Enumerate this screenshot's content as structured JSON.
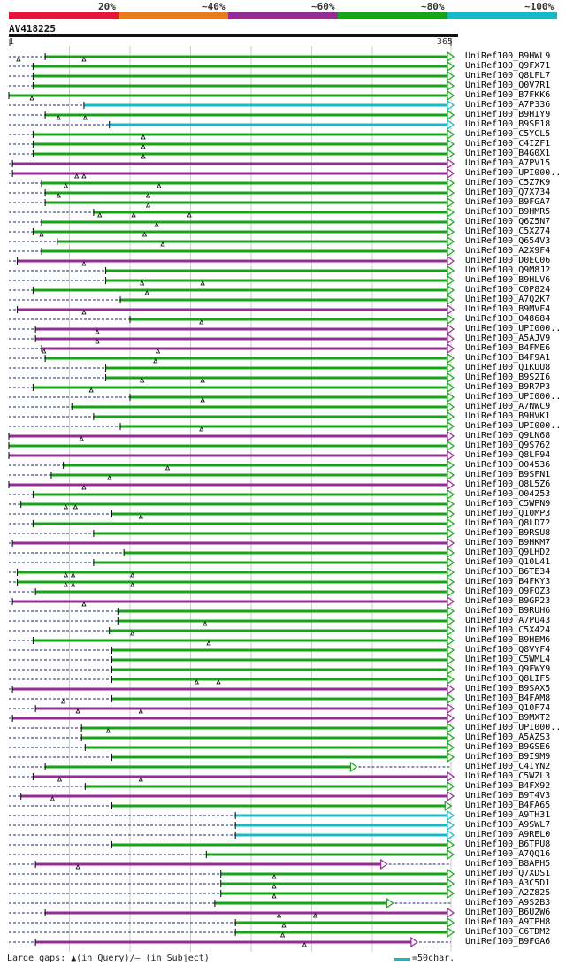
{
  "legend": {
    "items": [
      {
        "label": "20%",
        "color": "#e8153a"
      },
      {
        "label": "~40%",
        "color": "#e87d1e"
      },
      {
        "label": "~60%",
        "color": "#932c93"
      },
      {
        "label": "~80%",
        "color": "#18a418"
      },
      {
        "label": "~100%",
        "color": "#18b8c8"
      }
    ]
  },
  "query": {
    "name": "AV418225",
    "start": "1",
    "end": "365",
    "length": 365
  },
  "hits": [
    {
      "name": "UniRef100_B9HWL9",
      "s": 30,
      "e": 365,
      "c": "green",
      "tri": [
        8,
        62
      ]
    },
    {
      "name": "UniRef100_Q9FX71",
      "s": 20,
      "e": 365,
      "c": "green",
      "tri": []
    },
    {
      "name": "UniRef100_Q8LFL7",
      "s": 20,
      "e": 365,
      "c": "green",
      "tri": []
    },
    {
      "name": "UniRef100_Q0V7R1",
      "s": 20,
      "e": 365,
      "c": "green",
      "tri": []
    },
    {
      "name": "UniRef100_B7FKK6",
      "s": 0,
      "e": 365,
      "c": "green",
      "tri": [
        19
      ]
    },
    {
      "name": "UniRef100_A7P336",
      "s": 62,
      "e": 365,
      "c": "cyan",
      "tri": []
    },
    {
      "name": "UniRef100_B9HIY9",
      "s": 30,
      "e": 365,
      "c": "green",
      "tri": [
        41,
        63
      ]
    },
    {
      "name": "UniRef100_B9SE18",
      "s": 83,
      "e": 365,
      "c": "cyan",
      "tri": []
    },
    {
      "name": "UniRef100_C5YCL5",
      "s": 20,
      "e": 365,
      "c": "green",
      "tri": [
        111
      ]
    },
    {
      "name": "UniRef100_C4IZF1",
      "s": 20,
      "e": 365,
      "c": "green",
      "tri": [
        111
      ]
    },
    {
      "name": "UniRef100_B4G0X1",
      "s": 20,
      "e": 365,
      "c": "green",
      "tri": [
        111
      ]
    },
    {
      "name": "UniRef100_A7PV15",
      "s": 3,
      "e": 365,
      "c": "purple",
      "tri": []
    },
    {
      "name": "UniRef100_UPI000..",
      "s": 3,
      "e": 365,
      "c": "purple",
      "tri": [
        56,
        62
      ]
    },
    {
      "name": "UniRef100_C5Z7K9",
      "s": 27,
      "e": 365,
      "c": "green",
      "tri": [
        47,
        124
      ]
    },
    {
      "name": "UniRef100_Q7X734",
      "s": 30,
      "e": 365,
      "c": "green",
      "tri": [
        41,
        115
      ]
    },
    {
      "name": "UniRef100_B9FGA7",
      "s": 30,
      "e": 365,
      "c": "green",
      "tri": [
        115
      ]
    },
    {
      "name": "UniRef100_B9HMR5",
      "s": 70,
      "e": 365,
      "c": "green",
      "tri": [
        75,
        103,
        149
      ]
    },
    {
      "name": "UniRef100_Q6Z5N7",
      "s": 27,
      "e": 365,
      "c": "green",
      "tri": [
        122
      ]
    },
    {
      "name": "UniRef100_C5XZ74",
      "s": 20,
      "e": 365,
      "c": "green",
      "tri": [
        27,
        112
      ]
    },
    {
      "name": "UniRef100_Q654V3",
      "s": 40,
      "e": 365,
      "c": "green",
      "tri": [
        127
      ]
    },
    {
      "name": "UniRef100_A2X9F4",
      "s": 27,
      "e": 365,
      "c": "green",
      "tri": []
    },
    {
      "name": "UniRef100_D0EC06",
      "s": 7,
      "e": 365,
      "c": "purple",
      "tri": [
        62
      ]
    },
    {
      "name": "UniRef100_Q9M8J2",
      "s": 80,
      "e": 365,
      "c": "green",
      "tri": []
    },
    {
      "name": "UniRef100_B9HLV6",
      "s": 80,
      "e": 365,
      "c": "green",
      "tri": [
        110,
        160
      ]
    },
    {
      "name": "UniRef100_C0P824",
      "s": 20,
      "e": 365,
      "c": "green",
      "tri": [
        114
      ]
    },
    {
      "name": "UniRef100_A7Q2K7",
      "s": 92,
      "e": 365,
      "c": "green",
      "tri": []
    },
    {
      "name": "UniRef100_B9MVF4",
      "s": 7,
      "e": 365,
      "c": "purple",
      "tri": [
        62
      ]
    },
    {
      "name": "UniRef100_O48684",
      "s": 100,
      "e": 365,
      "c": "green",
      "tri": [
        159
      ]
    },
    {
      "name": "UniRef100_UPI000..",
      "s": 22,
      "e": 365,
      "c": "purple",
      "tri": [
        73
      ]
    },
    {
      "name": "UniRef100_A5AJV9",
      "s": 22,
      "e": 365,
      "c": "purple",
      "tri": [
        73
      ]
    },
    {
      "name": "UniRef100_B4FME6",
      "s": 27,
      "e": 365,
      "c": "purple",
      "tri": [
        29,
        123
      ]
    },
    {
      "name": "UniRef100_B4F9A1",
      "s": 30,
      "e": 365,
      "c": "green",
      "tri": [
        121
      ]
    },
    {
      "name": "UniRef100_Q1KUU8",
      "s": 80,
      "e": 365,
      "c": "green",
      "tri": []
    },
    {
      "name": "UniRef100_B9S2I6",
      "s": 80,
      "e": 365,
      "c": "green",
      "tri": [
        110,
        160
      ]
    },
    {
      "name": "UniRef100_B9R7P3",
      "s": 20,
      "e": 365,
      "c": "green",
      "tri": [
        68
      ]
    },
    {
      "name": "UniRef100_UPI000..",
      "s": 100,
      "e": 365,
      "c": "green",
      "tri": [
        160
      ]
    },
    {
      "name": "UniRef100_A7NWC9",
      "s": 52,
      "e": 365,
      "c": "green",
      "tri": []
    },
    {
      "name": "UniRef100_B9HVK1",
      "s": 70,
      "e": 365,
      "c": "green",
      "tri": []
    },
    {
      "name": "UniRef100_UPI000..",
      "s": 92,
      "e": 365,
      "c": "green",
      "tri": [
        159
      ]
    },
    {
      "name": "UniRef100_Q9LN68",
      "s": 0,
      "e": 365,
      "c": "purple",
      "tri": [
        60
      ]
    },
    {
      "name": "UniRef100_Q9S762",
      "s": 0,
      "e": 365,
      "c": "green",
      "tri": []
    },
    {
      "name": "UniRef100_Q8LF94",
      "s": 0,
      "e": 365,
      "c": "purple",
      "tri": []
    },
    {
      "name": "UniRef100_O04536",
      "s": 45,
      "e": 365,
      "c": "green",
      "tri": [
        131
      ]
    },
    {
      "name": "UniRef100_B9SFN1",
      "s": 35,
      "e": 365,
      "c": "green",
      "tri": [
        83
      ]
    },
    {
      "name": "UniRef100_Q8L5Z6",
      "s": 0,
      "e": 365,
      "c": "purple",
      "tri": [
        62
      ]
    },
    {
      "name": "UniRef100_O04253",
      "s": 20,
      "e": 365,
      "c": "green",
      "tri": []
    },
    {
      "name": "UniRef100_C5WPN9",
      "s": 10,
      "e": 365,
      "c": "green",
      "tri": [
        47,
        55
      ]
    },
    {
      "name": "UniRef100_Q10MP3",
      "s": 85,
      "e": 365,
      "c": "green",
      "tri": [
        109
      ]
    },
    {
      "name": "UniRef100_Q8LD72",
      "s": 20,
      "e": 365,
      "c": "green",
      "tri": []
    },
    {
      "name": "UniRef100_B9RSU8",
      "s": 70,
      "e": 365,
      "c": "green",
      "tri": []
    },
    {
      "name": "UniRef100_B9HKM7",
      "s": 3,
      "e": 365,
      "c": "purple",
      "tri": []
    },
    {
      "name": "UniRef100_Q9LHD2",
      "s": 95,
      "e": 365,
      "c": "green",
      "tri": []
    },
    {
      "name": "UniRef100_Q10L41",
      "s": 70,
      "e": 365,
      "c": "green",
      "tri": []
    },
    {
      "name": "UniRef100_B6TE34",
      "s": 7,
      "e": 365,
      "c": "green",
      "tri": [
        47,
        53,
        102
      ]
    },
    {
      "name": "UniRef100_B4FKY3",
      "s": 7,
      "e": 365,
      "c": "green",
      "tri": [
        47,
        53,
        102
      ]
    },
    {
      "name": "UniRef100_Q9FQZ3",
      "s": 22,
      "e": 365,
      "c": "green",
      "tri": []
    },
    {
      "name": "UniRef100_B9GP23",
      "s": 3,
      "e": 365,
      "c": "purple",
      "tri": [
        62
      ]
    },
    {
      "name": "UniRef100_B9RUH6",
      "s": 90,
      "e": 365,
      "c": "green",
      "tri": []
    },
    {
      "name": "UniRef100_A7PU43",
      "s": 90,
      "e": 365,
      "c": "green",
      "tri": [
        162
      ]
    },
    {
      "name": "UniRef100_C5X424",
      "s": 83,
      "e": 365,
      "c": "green",
      "tri": [
        102
      ]
    },
    {
      "name": "UniRef100_B9HEM6",
      "s": 20,
      "e": 365,
      "c": "green",
      "tri": [
        165
      ]
    },
    {
      "name": "UniRef100_Q8VYF4",
      "s": 85,
      "e": 365,
      "c": "green",
      "tri": []
    },
    {
      "name": "UniRef100_C5WML4",
      "s": 85,
      "e": 365,
      "c": "green",
      "tri": []
    },
    {
      "name": "UniRef100_Q9FWY9",
      "s": 85,
      "e": 365,
      "c": "green",
      "tri": []
    },
    {
      "name": "UniRef100_Q8LIF5",
      "s": 85,
      "e": 365,
      "c": "green",
      "tri": [
        155,
        173
      ]
    },
    {
      "name": "UniRef100_B9SAX5",
      "s": 3,
      "e": 365,
      "c": "purple",
      "tri": []
    },
    {
      "name": "UniRef100_B4FAM8",
      "s": 85,
      "e": 365,
      "c": "green",
      "tri": [
        45
      ]
    },
    {
      "name": "UniRef100_Q10F74",
      "s": 22,
      "e": 365,
      "c": "purple",
      "tri": [
        57,
        109
      ]
    },
    {
      "name": "UniRef100_B9MXT2",
      "s": 3,
      "e": 365,
      "c": "purple",
      "tri": []
    },
    {
      "name": "UniRef100_UPI000..",
      "s": 60,
      "e": 365,
      "c": "green",
      "tri": [
        82
      ]
    },
    {
      "name": "UniRef100_A5AZS3",
      "s": 60,
      "e": 365,
      "c": "green",
      "tri": []
    },
    {
      "name": "UniRef100_B9GSE6",
      "s": 63,
      "e": 365,
      "c": "green",
      "tri": []
    },
    {
      "name": "UniRef100_B9I9M9",
      "s": 85,
      "e": 365,
      "c": "green",
      "tri": []
    },
    {
      "name": "UniRef100_C4IYN2",
      "s": 30,
      "e": 285,
      "c": "green",
      "tri": []
    },
    {
      "name": "UniRef100_C5WZL3",
      "s": 20,
      "e": 365,
      "c": "purple",
      "tri": [
        42,
        109
      ]
    },
    {
      "name": "UniRef100_B4FX92",
      "s": 63,
      "e": 365,
      "c": "green",
      "tri": []
    },
    {
      "name": "UniRef100_B9T4V3",
      "s": 10,
      "e": 365,
      "c": "purple",
      "tri": [
        36
      ]
    },
    {
      "name": "UniRef100_B4FA65",
      "s": 85,
      "e": 363,
      "c": "green",
      "tri": []
    },
    {
      "name": "UniRef100_A9TH31",
      "s": 187,
      "e": 365,
      "c": "cyan",
      "tri": []
    },
    {
      "name": "UniRef100_A9SWL7",
      "s": 187,
      "e": 365,
      "c": "cyan",
      "tri": []
    },
    {
      "name": "UniRef100_A9REL0",
      "s": 187,
      "e": 365,
      "c": "cyan",
      "tri": []
    },
    {
      "name": "UniRef100_B6TPU8",
      "s": 85,
      "e": 365,
      "c": "green",
      "tri": []
    },
    {
      "name": "UniRef100_A7QQ16",
      "s": 163,
      "e": 365,
      "c": "green",
      "tri": []
    },
    {
      "name": "UniRef100_B8APH5",
      "s": 22,
      "e": 310,
      "c": "purple",
      "tri": [
        57
      ]
    },
    {
      "name": "UniRef100_Q7XDS1",
      "s": 175,
      "e": 365,
      "c": "green",
      "tri": [
        219
      ]
    },
    {
      "name": "UniRef100_A3C5D1",
      "s": 175,
      "e": 365,
      "c": "green",
      "tri": [
        219
      ]
    },
    {
      "name": "UniRef100_A2Z825",
      "s": 175,
      "e": 365,
      "c": "green",
      "tri": [
        219
      ]
    },
    {
      "name": "UniRef100_A9S2B3",
      "s": 170,
      "e": 315,
      "c": "green",
      "tri": []
    },
    {
      "name": "UniRef100_B6U2W6",
      "s": 30,
      "e": 365,
      "c": "purple",
      "tri": [
        223,
        253
      ]
    },
    {
      "name": "UniRef100_A9TPH8",
      "s": 187,
      "e": 365,
      "c": "green",
      "tri": [
        227
      ]
    },
    {
      "name": "UniRef100_C6TDM2",
      "s": 187,
      "e": 365,
      "c": "green",
      "tri": [
        226
      ]
    },
    {
      "name": "UniRef100_B9FGA6",
      "s": 22,
      "e": 335,
      "c": "purple",
      "tri": [
        244
      ]
    }
  ],
  "footer": {
    "text": "Large gaps: ▲(in Query)/— (in Subject)",
    "scale_label": "=50char."
  },
  "colors": {
    "green": "#18a418",
    "purple": "#932c93",
    "cyan": "#18b8c8",
    "navy": "#1a2a6c",
    "grid": "#cccccc"
  }
}
